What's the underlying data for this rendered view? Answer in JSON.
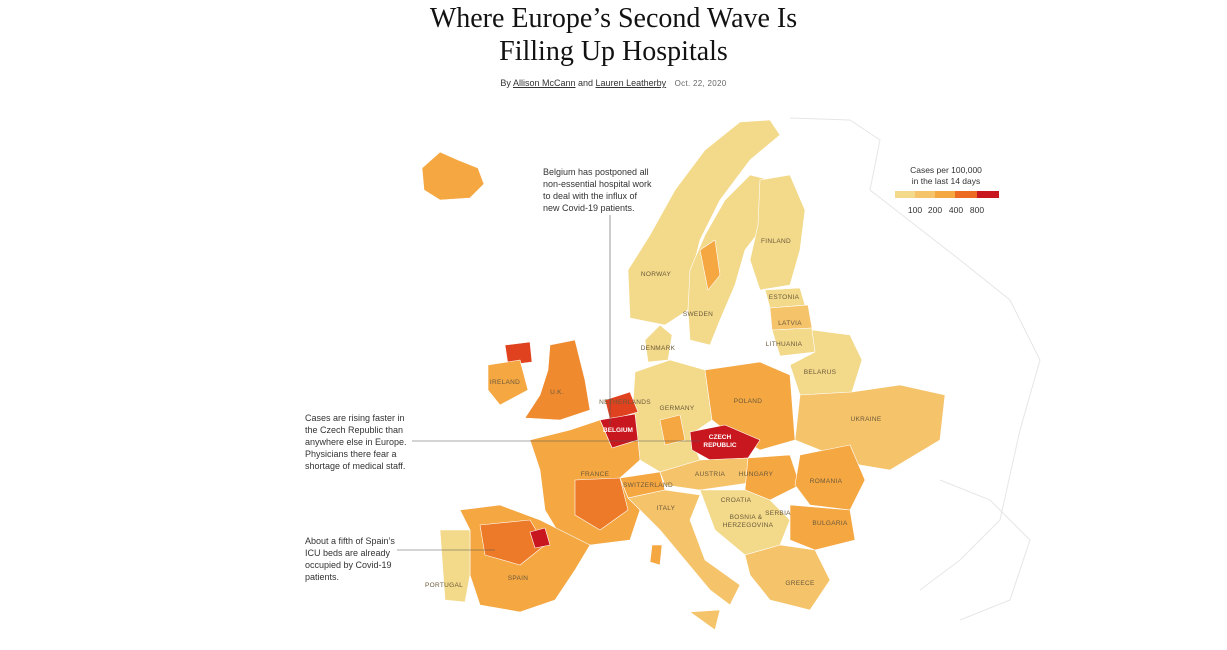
{
  "header": {
    "title_lines": [
      "Where Europe’s Second Wave Is",
      "Filling Up Hospitals"
    ],
    "byline_prefix": "By",
    "authors": [
      "Allison McCann",
      "Lauren Leatherby"
    ],
    "conjunction": "and",
    "date": "Oct. 22, 2020"
  },
  "legend": {
    "title_lines": [
      "Cases per 100,000",
      "in the last 14 days"
    ],
    "labels": [
      "100",
      "200",
      "400",
      "800"
    ]
  },
  "annotations": [
    "Belgium has postponed all non-essential hospital work to deal with the influx of new Covid-19 patients.",
    "Cases are rising faster in the Czech Republic than anywhere else in Europe. Physicians there fear a shortage of medical staff.",
    "About a fifth of Spain’s ICU beds are already occupied by Covid-19 patients."
  ],
  "map": {
    "labels": [
      "NORWAY",
      "SWEDEN",
      "FINLAND",
      "ESTONIA",
      "LATVIA",
      "LITHUANIA",
      "BELARUS",
      "DENMARK",
      "NETHERLANDS",
      "BELGIUM",
      "GERMANY",
      "POLAND",
      "UKRAINE",
      "CZECH",
      "REPUBLIC",
      "AUSTRIA",
      "HUNGARY",
      "ROMANIA",
      "SWITZERLAND",
      "ITALY",
      "CROATIA",
      "BOSNIA &",
      "HERZEGOVINA",
      "SERBIA",
      "BULGARIA",
      "GREECE",
      "FRANCE",
      "SPAIN",
      "PORTUGAL",
      "IRELAND",
      "U.K."
    ]
  }
}
